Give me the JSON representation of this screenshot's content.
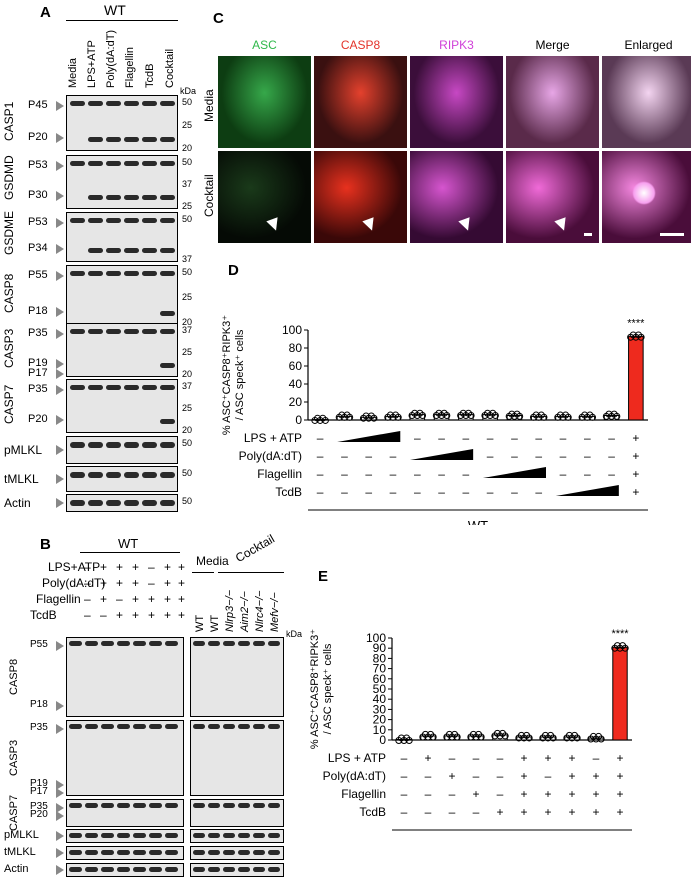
{
  "panels": {
    "A": "A",
    "B": "B",
    "C": "C",
    "D": "D",
    "E": "E"
  },
  "panel_a": {
    "genotype": "WT",
    "lanes": [
      "Media",
      "LPS+ATP",
      "Poly(dA:dT)",
      "Flagellin",
      "TcdB",
      "Cocktail"
    ],
    "kda": "kDa",
    "blots": [
      {
        "protein": "CASP1",
        "bands": [
          "P45",
          "P20"
        ],
        "markers": [
          "50",
          "25",
          "20"
        ]
      },
      {
        "protein": "GSDMD",
        "bands": [
          "P53",
          "P30"
        ],
        "markers": [
          "50",
          "37",
          "25"
        ]
      },
      {
        "protein": "GSDME",
        "bands": [
          "P53",
          "P34"
        ],
        "markers": [
          "50",
          "37"
        ]
      },
      {
        "protein": "CASP8",
        "bands": [
          "P55",
          "P18"
        ],
        "markers": [
          "50",
          "25",
          "20"
        ]
      },
      {
        "protein": "CASP3",
        "bands": [
          "P35",
          "P19",
          "P17"
        ],
        "markers": [
          "37",
          "25",
          "20"
        ]
      },
      {
        "protein": "CASP7",
        "bands": [
          "P35",
          "P20"
        ],
        "markers": [
          "37",
          "25",
          "20"
        ]
      },
      {
        "protein": "pMLKL",
        "bands": [],
        "markers": [
          "50"
        ]
      },
      {
        "protein": "tMLKL",
        "bands": [],
        "markers": [
          "50"
        ]
      },
      {
        "protein": "Actin",
        "bands": [],
        "markers": [
          "50"
        ]
      }
    ]
  },
  "panel_b": {
    "genotype": "WT",
    "conditions": [
      "LPS+ATP",
      "Poly(dA:dT)",
      "Flagellin",
      "TcdB"
    ],
    "signs": [
      [
        "–",
        "+",
        "+",
        "+",
        "–",
        "+",
        "+"
      ],
      [
        "–",
        "+",
        "+",
        "+",
        "–",
        "+",
        "+"
      ],
      [
        "–",
        "+",
        "–",
        "+",
        "+",
        "+",
        "+"
      ],
      [
        "–",
        "–",
        "+",
        "+",
        "+",
        "+",
        "+"
      ]
    ],
    "media": "Media",
    "cocktail": "Cocktail",
    "right_lanes": [
      "WT",
      "WT",
      "Nlrp3−/−",
      "Aim2−/−",
      "Nlrc4−/−",
      "Mefv−/−"
    ],
    "kda": "kDa",
    "blots": [
      {
        "protein": "CASP8",
        "bands": [
          "P55",
          "P18"
        ]
      },
      {
        "protein": "CASP3",
        "bands": [
          "P35",
          "P19",
          "P17"
        ]
      },
      {
        "protein": "CASP7",
        "bands": [
          "P35",
          "P20"
        ]
      },
      {
        "protein": "pMLKL",
        "bands": []
      },
      {
        "protein": "tMLKL",
        "bands": []
      },
      {
        "protein": "Actin",
        "bands": []
      }
    ],
    "markers": [
      "50",
      "25",
      "20",
      "37",
      "25",
      "20",
      "37",
      "25",
      "20",
      "50",
      "50",
      "50"
    ]
  },
  "panel_c": {
    "channels": [
      "ASC",
      "CASP8",
      "RIPK3",
      "Merge",
      "Enlarged"
    ],
    "rows": [
      "Media",
      "Cocktail"
    ],
    "channel_colors": [
      "#2fb84a",
      "#e3332a",
      "#d040d8",
      "#000000",
      "#000000"
    ]
  },
  "chart_data": [
    {
      "type": "bar",
      "panel": "D",
      "ylabel": "% ASC⁺CASP8⁺RIPK3⁺ / ASC speck⁺ cells",
      "ylim": [
        0,
        100
      ],
      "yticks": [
        "0",
        "20",
        "40",
        "60",
        "80",
        "100"
      ],
      "values": [
        0.5,
        4,
        3,
        4,
        6,
        6,
        6,
        6,
        5,
        4,
        4,
        4,
        5,
        93
      ],
      "significance": "****",
      "rows": [
        {
          "label": "LPS + ATP",
          "signs": [
            "–",
            "",
            "",
            "",
            "–",
            "–",
            "–",
            "–",
            "–",
            "–",
            "–",
            "–",
            "–",
            "+"
          ],
          "ramp": [
            1,
            3
          ]
        },
        {
          "label": "Poly(dA:dT)",
          "signs": [
            "–",
            "–",
            "–",
            "–",
            "",
            "",
            "",
            "–",
            "–",
            "–",
            "–",
            "–",
            "–",
            "+"
          ],
          "ramp": [
            4,
            6
          ]
        },
        {
          "label": "Flagellin",
          "signs": [
            "–",
            "–",
            "–",
            "–",
            "–",
            "–",
            "–",
            "",
            "",
            "",
            "–",
            "–",
            "–",
            "+"
          ],
          "ramp": [
            7,
            9
          ]
        },
        {
          "label": "TcdB",
          "signs": [
            "–",
            "–",
            "–",
            "–",
            "–",
            "–",
            "–",
            "–",
            "–",
            "–",
            "",
            "",
            "",
            "+"
          ],
          "ramp": [
            10,
            12
          ]
        }
      ],
      "group": "WT"
    },
    {
      "type": "bar",
      "panel": "E",
      "ylabel": "% ASC⁺CASP8⁺RIPK3⁺ / ASC speck⁺ cells",
      "ylim": [
        0,
        100
      ],
      "yticks": [
        "0",
        "10",
        "20",
        "30",
        "40",
        "50",
        "60",
        "70",
        "80",
        "90",
        "100"
      ],
      "values": [
        0.5,
        4,
        4,
        4,
        5,
        3,
        3,
        3,
        2,
        91
      ],
      "significance": "****",
      "rows": [
        {
          "label": "LPS + ATP",
          "signs": [
            "–",
            "+",
            "–",
            "–",
            "–",
            "+",
            "+",
            "+",
            "–",
            "+"
          ]
        },
        {
          "label": "Poly(dA:dT)",
          "signs": [
            "–",
            "–",
            "+",
            "–",
            "–",
            "+",
            "–",
            "+",
            "+",
            "+"
          ]
        },
        {
          "label": "Flagellin",
          "signs": [
            "–",
            "–",
            "–",
            "+",
            "–",
            "+",
            "+",
            "+",
            "+",
            "+"
          ]
        },
        {
          "label": "TcdB",
          "signs": [
            "–",
            "–",
            "–",
            "–",
            "+",
            "+",
            "+",
            "+",
            "+",
            "+"
          ]
        }
      ],
      "group": "WT"
    }
  ],
  "colors": {
    "bar_red": "#ee2a1e",
    "bar_white": "#ffffff"
  }
}
